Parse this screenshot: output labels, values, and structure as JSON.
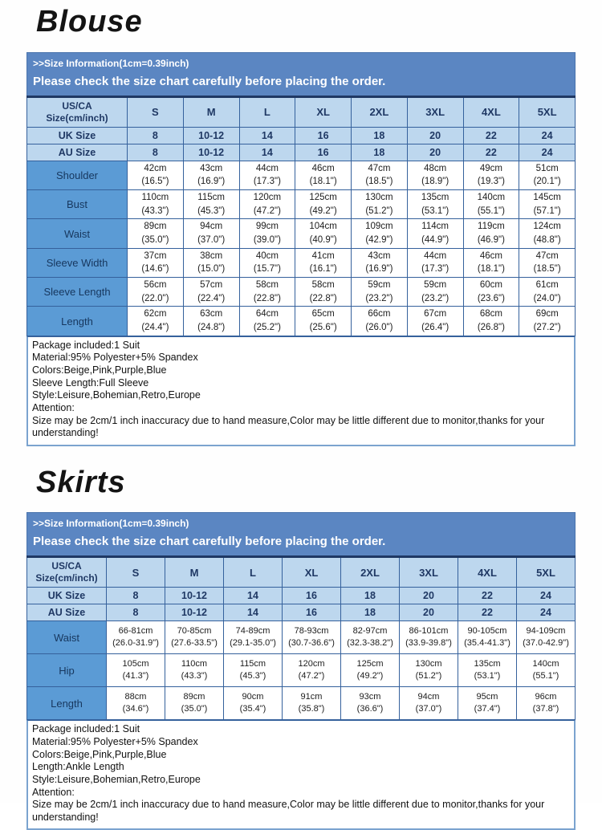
{
  "colors": {
    "banner_blue": "#5b86c2",
    "header_light_blue": "#bdd7ee",
    "label_blue": "#5b9bd5",
    "border_navy": "#35619c",
    "dark_navy_text": "#1f3864",
    "notes_border": "#7ba3cf"
  },
  "sections": [
    {
      "id": "blouse",
      "title": "Blouse",
      "banner": {
        "line1": ">>Size Information(1cm=0.39inch)",
        "line2": "Please check the size chart carefully before placing the order."
      },
      "table": {
        "corner": {
          "line1": "US/CA",
          "line2": "Size(cm/inch)"
        },
        "size_headers": [
          "S",
          "M",
          "L",
          "XL",
          "2XL",
          "3XL",
          "4XL",
          "5XL"
        ],
        "region_rows": [
          {
            "label": "UK Size",
            "values": [
              "8",
              "10-12",
              "14",
              "16",
              "18",
              "20",
              "22",
              "24"
            ]
          },
          {
            "label": "AU Size",
            "values": [
              "8",
              "10-12",
              "14",
              "16",
              "18",
              "20",
              "22",
              "24"
            ]
          }
        ],
        "measure_rows": [
          {
            "label": "Shoulder",
            "cells": [
              {
                "cm": "42cm",
                "in": "(16.5\")"
              },
              {
                "cm": "43cm",
                "in": "(16.9\")"
              },
              {
                "cm": "44cm",
                "in": "(17.3\")"
              },
              {
                "cm": "46cm",
                "in": "(18.1\")"
              },
              {
                "cm": "47cm",
                "in": "(18.5\")"
              },
              {
                "cm": "48cm",
                "in": "(18.9\")"
              },
              {
                "cm": "49cm",
                "in": "(19.3\")"
              },
              {
                "cm": "51cm",
                "in": "(20.1\")"
              }
            ]
          },
          {
            "label": "Bust",
            "cells": [
              {
                "cm": "110cm",
                "in": "(43.3\")"
              },
              {
                "cm": "115cm",
                "in": "(45.3\")"
              },
              {
                "cm": "120cm",
                "in": "(47.2\")"
              },
              {
                "cm": "125cm",
                "in": "(49.2\")"
              },
              {
                "cm": "130cm",
                "in": "(51.2\")"
              },
              {
                "cm": "135cm",
                "in": "(53.1\")"
              },
              {
                "cm": "140cm",
                "in": "(55.1\")"
              },
              {
                "cm": "145cm",
                "in": "(57.1\")"
              }
            ]
          },
          {
            "label": "Waist",
            "cells": [
              {
                "cm": "89cm",
                "in": "(35.0\")"
              },
              {
                "cm": "94cm",
                "in": "(37.0\")"
              },
              {
                "cm": "99cm",
                "in": "(39.0\")"
              },
              {
                "cm": "104cm",
                "in": "(40.9\")"
              },
              {
                "cm": "109cm",
                "in": "(42.9\")"
              },
              {
                "cm": "114cm",
                "in": "(44.9\")"
              },
              {
                "cm": "119cm",
                "in": "(46.9\")"
              },
              {
                "cm": "124cm",
                "in": "(48.8\")"
              }
            ]
          },
          {
            "label": "Sleeve Width",
            "cells": [
              {
                "cm": "37cm",
                "in": "(14.6\")"
              },
              {
                "cm": "38cm",
                "in": "(15.0\")"
              },
              {
                "cm": "40cm",
                "in": "(15.7\")"
              },
              {
                "cm": "41cm",
                "in": "(16.1\")"
              },
              {
                "cm": "43cm",
                "in": "(16.9\")"
              },
              {
                "cm": "44cm",
                "in": "(17.3\")"
              },
              {
                "cm": "46cm",
                "in": "(18.1\")"
              },
              {
                "cm": "47cm",
                "in": "(18.5\")"
              }
            ]
          },
          {
            "label": "Sleeve Length",
            "cells": [
              {
                "cm": "56cm",
                "in": "(22.0\")"
              },
              {
                "cm": "57cm",
                "in": "(22.4\")"
              },
              {
                "cm": "58cm",
                "in": "(22.8\")"
              },
              {
                "cm": "58cm",
                "in": "(22.8\")"
              },
              {
                "cm": "59cm",
                "in": "(23.2\")"
              },
              {
                "cm": "59cm",
                "in": "(23.2\")"
              },
              {
                "cm": "60cm",
                "in": "(23.6\")"
              },
              {
                "cm": "61cm",
                "in": "(24.0\")"
              }
            ]
          },
          {
            "label": "Length",
            "cells": [
              {
                "cm": "62cm",
                "in": "(24.4\")"
              },
              {
                "cm": "63cm",
                "in": "(24.8\")"
              },
              {
                "cm": "64cm",
                "in": "(25.2\")"
              },
              {
                "cm": "65cm",
                "in": "(25.6\")"
              },
              {
                "cm": "66cm",
                "in": "(26.0\")"
              },
              {
                "cm": "67cm",
                "in": "(26.4\")"
              },
              {
                "cm": "68cm",
                "in": "(26.8\")"
              },
              {
                "cm": "69cm",
                "in": "(27.2\")"
              }
            ]
          }
        ]
      },
      "notes": [
        "Package included:1 Suit",
        "Material:95% Polyester+5% Spandex",
        "Colors:Beige,Pink,Purple,Blue",
        "Sleeve Length:Full Sleeve",
        "Style:Leisure,Bohemian,Retro,Europe",
        "Attention:",
        "Size may be 2cm/1 inch inaccuracy due to hand measure,Color may be little different due to monitor,thanks for your understanding!"
      ]
    },
    {
      "id": "skirts",
      "title": "Skirts",
      "banner": {
        "line1": ">>Size Information(1cm=0.39inch)",
        "line2": "Please check the size chart carefully before placing the order."
      },
      "table": {
        "corner": {
          "line1": "US/CA",
          "line2": "Size(cm/inch)"
        },
        "size_headers": [
          "S",
          "M",
          "L",
          "XL",
          "2XL",
          "3XL",
          "4XL",
          "5XL"
        ],
        "region_rows": [
          {
            "label": "UK Size",
            "values": [
              "8",
              "10-12",
              "14",
              "16",
              "18",
              "20",
              "22",
              "24"
            ]
          },
          {
            "label": "AU Size",
            "values": [
              "8",
              "10-12",
              "14",
              "16",
              "18",
              "20",
              "22",
              "24"
            ]
          }
        ],
        "measure_rows": [
          {
            "label": "Waist",
            "cells": [
              {
                "cm": "66-81cm",
                "in": "(26.0-31.9\")"
              },
              {
                "cm": "70-85cm",
                "in": "(27.6-33.5\")"
              },
              {
                "cm": "74-89cm",
                "in": "(29.1-35.0\")"
              },
              {
                "cm": "78-93cm",
                "in": "(30.7-36.6\")"
              },
              {
                "cm": "82-97cm",
                "in": "(32.3-38.2\")"
              },
              {
                "cm": "86-101cm",
                "in": "(33.9-39.8\")"
              },
              {
                "cm": "90-105cm",
                "in": "(35.4-41.3\")"
              },
              {
                "cm": "94-109cm",
                "in": "(37.0-42.9\")"
              }
            ]
          },
          {
            "label": "Hip",
            "cells": [
              {
                "cm": "105cm",
                "in": "(41.3\")"
              },
              {
                "cm": "110cm",
                "in": "(43.3\")"
              },
              {
                "cm": "115cm",
                "in": "(45.3\")"
              },
              {
                "cm": "120cm",
                "in": "(47.2\")"
              },
              {
                "cm": "125cm",
                "in": "(49.2\")"
              },
              {
                "cm": "130cm",
                "in": "(51.2\")"
              },
              {
                "cm": "135cm",
                "in": "(53.1\")"
              },
              {
                "cm": "140cm",
                "in": "(55.1\")"
              }
            ]
          },
          {
            "label": "Length",
            "cells": [
              {
                "cm": "88cm",
                "in": "(34.6\")"
              },
              {
                "cm": "89cm",
                "in": "(35.0\")"
              },
              {
                "cm": "90cm",
                "in": "(35.4\")"
              },
              {
                "cm": "91cm",
                "in": "(35.8\")"
              },
              {
                "cm": "93cm",
                "in": "(36.6\")"
              },
              {
                "cm": "94cm",
                "in": "(37.0\")"
              },
              {
                "cm": "95cm",
                "in": "(37.4\")"
              },
              {
                "cm": "96cm",
                "in": "(37.8\")"
              }
            ]
          }
        ]
      },
      "notes": [
        "Package included:1 Suit",
        "Material:95% Polyester+5% Spandex",
        "Colors:Beige,Pink,Purple,Blue",
        "Length:Ankle Length",
        "Style:Leisure,Bohemian,Retro,Europe",
        "Attention:",
        "Size may be 2cm/1 inch inaccuracy due to hand measure,Color may be little different due to monitor,thanks for your understanding!"
      ]
    }
  ]
}
